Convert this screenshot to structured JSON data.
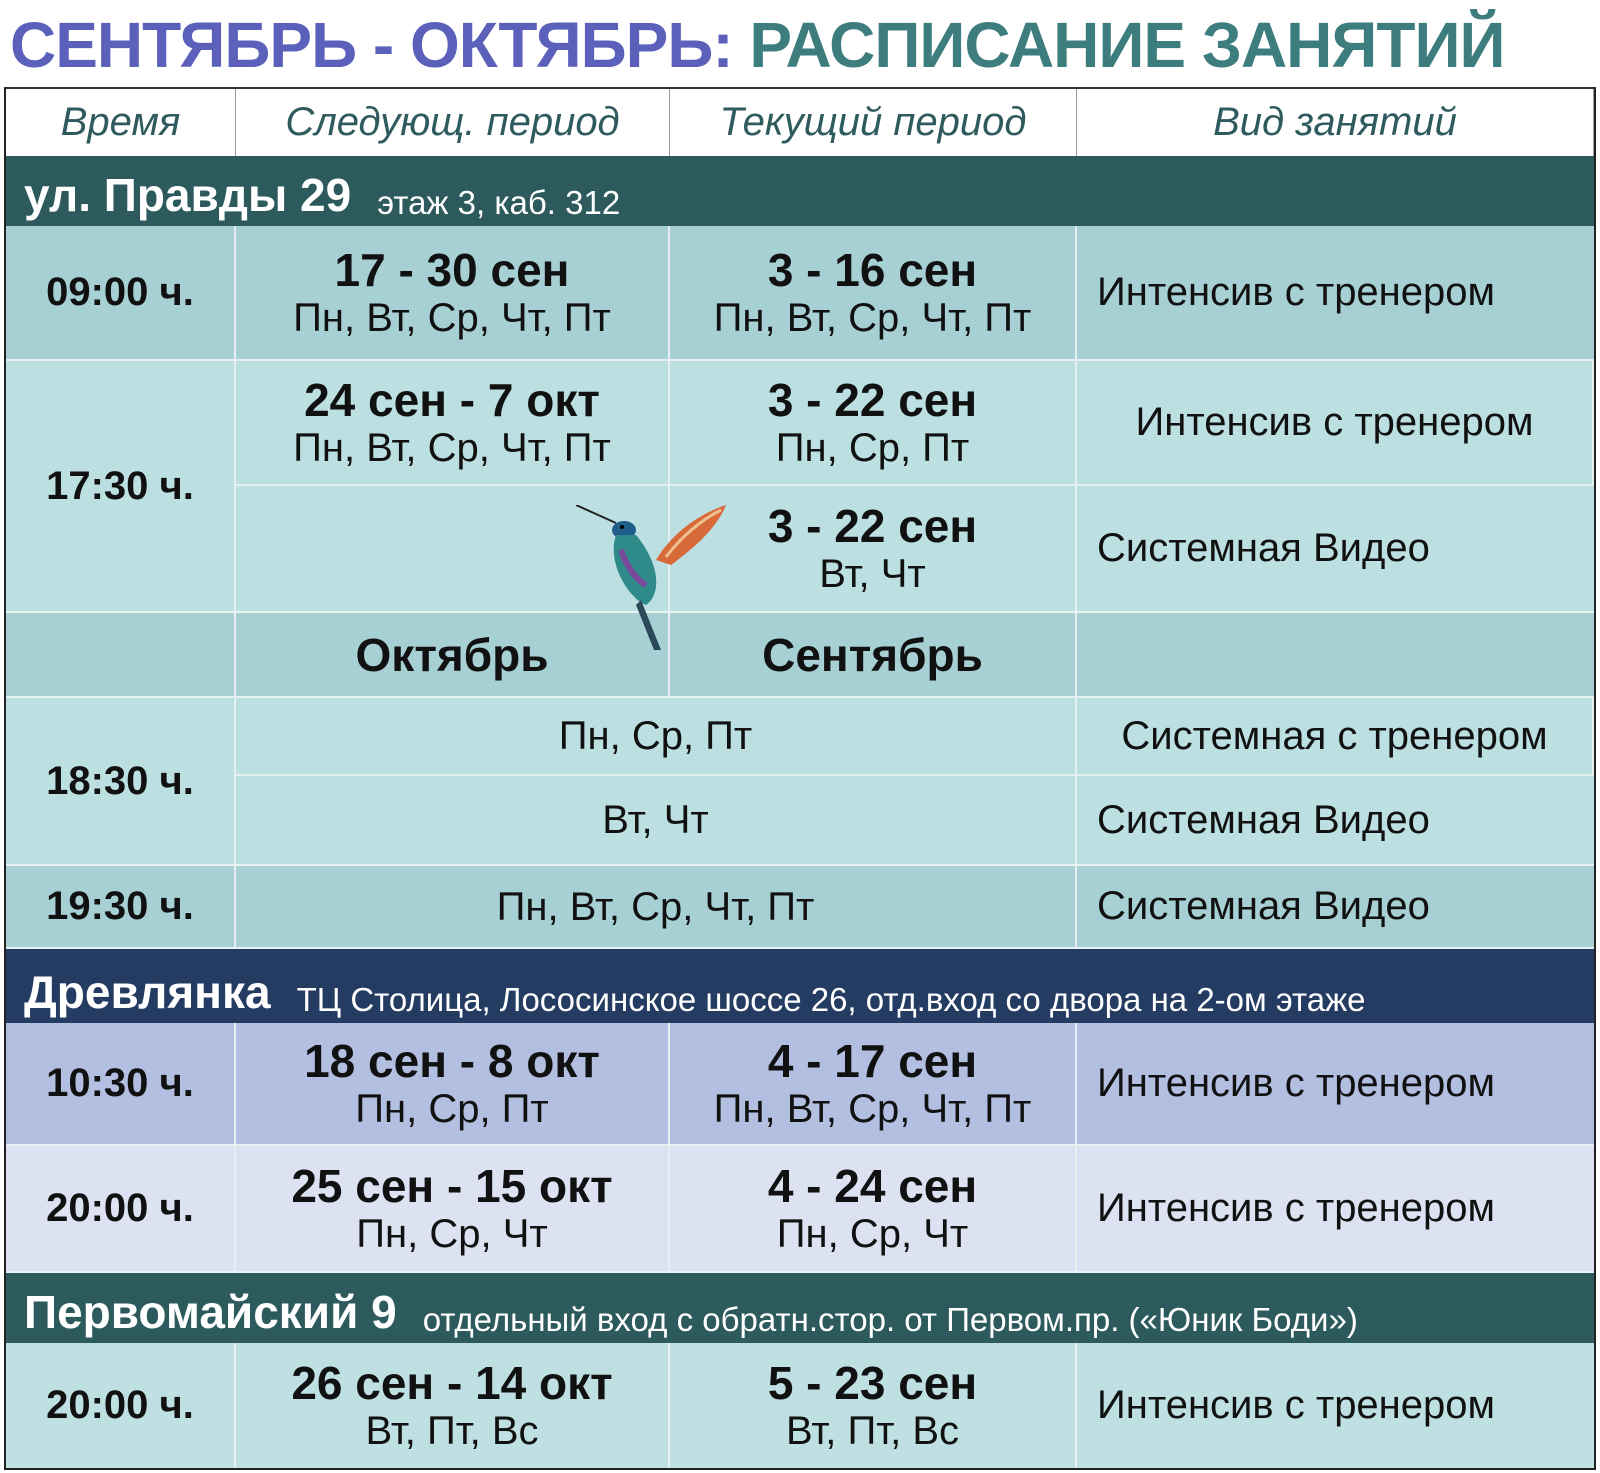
{
  "title": {
    "part1": "СЕНТЯБРЬ - ОКТЯБРЬ:",
    "part2": "РАСПИСАНИЕ ЗАНЯТИЙ"
  },
  "colors": {
    "title_purple": "#5b60bb",
    "title_teal": "#3e7d7e",
    "band_teal": "#2d5a5d",
    "band_navy": "#253c62"
  },
  "headers": [
    "Время",
    "Следующ. период",
    "Текущий период",
    "Вид занятий"
  ],
  "sections": [
    {
      "name": "ул. Правды 29",
      "note": "этаж 3, каб. 312"
    },
    {
      "name": "Древлянка",
      "note": "ТЦ Столица, Лососинское шоссе 26, отд.вход со двора на 2-ом этаже"
    },
    {
      "name": "Первомайский 9",
      "note": "отдельный вход с обратн.стор. от Первом.пр. («Юник Боди»)"
    }
  ],
  "rows": {
    "r0900": {
      "time": "09:00 ч.",
      "next_date": "17 - 30 сен",
      "next_days": "Пн, Вт, Ср, Чт, Пт",
      "cur_date": "3 - 16 сен",
      "cur_days": "Пн, Вт, Ср, Чт, Пт",
      "kind": "Интенсив с тренером"
    },
    "r1730": {
      "time": "17:30 ч.",
      "next_date": "24 сен - 7 окт",
      "next_days": "Пн, Вт, Ср, Чт, Пт",
      "cur_date": "3 - 22 сен",
      "cur_days": "Пн, Ср, Пт",
      "kind": "Интенсив с тренером",
      "cur_date2": "3 - 22 сен",
      "cur_days2": "Вт, Чт",
      "kind2": "Системная Видео"
    },
    "months": {
      "next": "Октябрь",
      "cur": "Сентябрь"
    },
    "r1830": {
      "time": "18:30 ч.",
      "days1": "Пн, Ср, Пт",
      "kind1": "Системная с тренером",
      "days2": "Вт, Чт",
      "kind2": "Системная Видео"
    },
    "r1930": {
      "time": "19:30 ч.",
      "days": "Пн, Вт, Ср, Чт, Пт",
      "kind": "Системная Видео"
    },
    "r1030": {
      "time": "10:30 ч.",
      "next_date": "18 сен - 8 окт",
      "next_days": "Пн, Ср, Пт",
      "cur_date": "4 - 17 сен",
      "cur_days": "Пн, Вт, Ср, Чт, Пт",
      "kind": "Интенсив с тренером"
    },
    "r2000a": {
      "time": "20:00 ч.",
      "next_date": "25 сен - 15 окт",
      "next_days": "Пн, Ср, Чт",
      "cur_date": "4 - 24 сен",
      "cur_days": "Пн, Ср, Чт",
      "kind": "Интенсив с тренером"
    },
    "r2000b": {
      "time": "20:00 ч.",
      "next_date": "26 сен - 14 окт",
      "next_days": "Вт, Пт, Вс",
      "cur_date": "5 - 23 сен",
      "cur_days": "Вт, Пт, Вс",
      "kind": "Интенсив с тренером"
    }
  }
}
